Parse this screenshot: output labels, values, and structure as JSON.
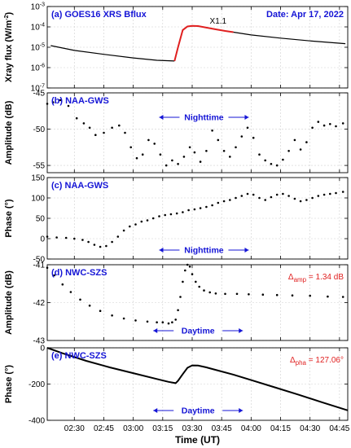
{
  "chart_data": [
    {
      "type": "line",
      "title": "(a) GOES16 XRS Bflux",
      "date_label": "Date: Apr 17, 2022",
      "annotation": "X1.1",
      "ylabel": "Xray flux (W/m",
      "ylabel_sup": "-2",
      "ylabel_end": ")",
      "yscale": "log",
      "ylim": [
        1e-07,
        0.001
      ],
      "yticks": [
        {
          "value": 1e-07,
          "base": "10",
          "exp": "-7"
        },
        {
          "value": 1e-06,
          "base": "10",
          "exp": "-6"
        },
        {
          "value": 1e-05,
          "base": "10",
          "exp": "-5"
        },
        {
          "value": 0.0001,
          "base": "10",
          "exp": "-4"
        },
        {
          "value": 0.001,
          "base": "10",
          "exp": "-3"
        }
      ],
      "series": [
        {
          "color": "#000000",
          "x": [
            2.3,
            2.5,
            2.75,
            3.0,
            3.2,
            3.35
          ],
          "y": [
            1.2e-05,
            7e-06,
            4.5e-06,
            3e-06,
            2.3e-06,
            2.1e-06
          ]
        },
        {
          "color": "#e02020",
          "x": [
            3.35,
            3.38,
            3.42,
            3.46,
            3.5,
            3.55,
            3.62,
            3.7,
            3.78,
            3.85
          ],
          "y": [
            2.1e-06,
            1e-05,
            7e-05,
            0.000105,
            0.000112,
            0.00011,
            9.2e-05,
            7.6e-05,
            6.3e-05,
            5.5e-05
          ]
        },
        {
          "color": "#000000",
          "x": [
            3.85,
            4.0,
            4.25,
            4.5,
            4.8
          ],
          "y": [
            5.5e-05,
            4e-05,
            2.8e-05,
            2.05e-05,
            1.5e-05
          ]
        }
      ]
    },
    {
      "type": "scatter",
      "title": "(b) NAA-GWS",
      "period_label": "Nighttime",
      "ylabel": "Amplitude (dB)",
      "ylim": [
        -56,
        -45
      ],
      "yticks": [
        -55,
        -50,
        -45
      ],
      "series": [
        {
          "color": "#000000",
          "x": [
            2.27,
            2.32,
            2.38,
            2.45,
            2.52,
            2.58,
            2.63,
            2.68,
            2.75,
            2.82,
            2.88,
            2.93,
            2.98,
            3.03,
            3.08,
            3.13,
            3.18,
            3.23,
            3.28,
            3.33,
            3.38,
            3.43,
            3.48,
            3.52,
            3.57,
            3.62,
            3.67,
            3.72,
            3.77,
            3.82,
            3.87,
            3.92,
            3.97,
            4.02,
            4.07,
            4.12,
            4.17,
            4.22,
            4.27,
            4.32,
            4.37,
            4.42,
            4.47,
            4.52,
            4.57,
            4.62,
            4.67,
            4.72,
            4.78
          ],
          "y": [
            -46.5,
            -46.3,
            -46.0,
            -46.8,
            -48.5,
            -49.2,
            -49.8,
            -50.8,
            -50.5,
            -49.8,
            -49.5,
            -50.5,
            -52.5,
            -54.0,
            -53.5,
            -51.5,
            -52.0,
            -53.5,
            -55.0,
            -54.3,
            -54.8,
            -53.8,
            -52.5,
            -53.2,
            -54.5,
            -53.0,
            -50.2,
            -51.5,
            -53.0,
            -53.8,
            -52.5,
            -51.0,
            -49.8,
            -51.2,
            -53.5,
            -54.3,
            -54.8,
            -55.0,
            -54.2,
            -53.0,
            -51.5,
            -52.8,
            -51.8,
            -49.8,
            -49.0,
            -49.5,
            -49.3,
            -49.6,
            -49.2
          ]
        }
      ]
    },
    {
      "type": "scatter",
      "title": "(c) NAA-GWS",
      "period_label": "Nighttime",
      "ylabel": "Phase (°)",
      "ylim": [
        -50,
        150
      ],
      "yticks": [
        -50,
        0,
        50,
        100,
        150
      ],
      "series": [
        {
          "color": "#000000",
          "x": [
            2.27,
            2.35,
            2.43,
            2.5,
            2.57,
            2.62,
            2.67,
            2.72,
            2.77,
            2.82,
            2.87,
            2.92,
            2.97,
            3.02,
            3.07,
            3.12,
            3.17,
            3.22,
            3.27,
            3.32,
            3.37,
            3.42,
            3.47,
            3.52,
            3.57,
            3.62,
            3.67,
            3.72,
            3.77,
            3.82,
            3.87,
            3.92,
            3.97,
            4.02,
            4.07,
            4.12,
            4.17,
            4.22,
            4.27,
            4.32,
            4.37,
            4.42,
            4.47,
            4.52,
            4.57,
            4.62,
            4.67,
            4.72,
            4.78
          ],
          "y": [
            5,
            3,
            2,
            0,
            -3,
            -8,
            -15,
            -20,
            -18,
            -8,
            5,
            20,
            30,
            35,
            42,
            45,
            50,
            55,
            58,
            60,
            62,
            65,
            70,
            72,
            75,
            78,
            82,
            88,
            92,
            95,
            100,
            105,
            110,
            108,
            100,
            95,
            102,
            108,
            110,
            105,
            98,
            92,
            95,
            100,
            105,
            108,
            110,
            112,
            115
          ]
        }
      ]
    },
    {
      "type": "scatter",
      "title": "(d) NWC-SZS",
      "period_label": "Daytime",
      "delta_symbol": "Δ",
      "delta_sub": "amp",
      "delta_value": " = 1.34 dB",
      "ylabel": "Amplitude (dB)",
      "ylim": [
        -43,
        -41
      ],
      "yticks": [
        -43,
        -42,
        -41
      ],
      "series": [
        {
          "color": "#000000",
          "x": [
            2.27,
            2.33,
            2.4,
            2.47,
            2.55,
            2.63,
            2.72,
            2.82,
            2.92,
            3.02,
            3.12,
            3.2,
            3.25,
            3.3,
            3.33,
            3.36,
            3.38,
            3.4,
            3.42,
            3.44,
            3.46,
            3.48,
            3.5,
            3.53,
            3.56,
            3.6,
            3.65,
            3.7,
            3.78,
            3.88,
            3.98,
            4.1,
            4.22,
            4.35,
            4.5,
            4.65,
            4.78
          ],
          "y": [
            -41.08,
            -41.28,
            -41.52,
            -41.72,
            -41.92,
            -42.08,
            -42.22,
            -42.34,
            -42.42,
            -42.47,
            -42.5,
            -42.52,
            -42.52,
            -42.55,
            -42.52,
            -42.45,
            -42.2,
            -41.85,
            -41.45,
            -41.15,
            -41.0,
            -41.05,
            -41.25,
            -41.45,
            -41.58,
            -41.68,
            -41.73,
            -41.76,
            -41.77,
            -41.77,
            -41.78,
            -41.79,
            -41.8,
            -41.81,
            -41.82,
            -41.84,
            -41.85
          ]
        }
      ]
    },
    {
      "type": "line",
      "title": "(e) NWC-SZS",
      "period_label": "Daytime",
      "delta_symbol": "Δ",
      "delta_sub": "pha",
      "delta_value": " = 127.06°",
      "ylabel": "Phase (°)",
      "xlabel": "Time (UT)",
      "ylim": [
        -400,
        0
      ],
      "yticks": [
        -400,
        -200,
        0
      ],
      "xlim": [
        2.27,
        4.82
      ],
      "xticks": [
        {
          "value": 2.5,
          "label": "02:30"
        },
        {
          "value": 2.75,
          "label": "02:45"
        },
        {
          "value": 3.0,
          "label": "03:00"
        },
        {
          "value": 3.25,
          "label": "03:15"
        },
        {
          "value": 3.5,
          "label": "03:30"
        },
        {
          "value": 3.75,
          "label": "03:45"
        },
        {
          "value": 4.0,
          "label": "04:00"
        },
        {
          "value": 4.25,
          "label": "04:15"
        },
        {
          "value": 4.5,
          "label": "04:30"
        },
        {
          "value": 4.75,
          "label": "04:45"
        }
      ],
      "series": [
        {
          "color": "#000000",
          "x": [
            2.27,
            2.4,
            2.6,
            2.8,
            3.0,
            3.2,
            3.3,
            3.36,
            3.38,
            3.42,
            3.46,
            3.5,
            3.55,
            3.62,
            3.7,
            3.85,
            4.0,
            4.2,
            4.4,
            4.6,
            4.82
          ],
          "y": [
            0,
            -30,
            -72,
            -108,
            -140,
            -172,
            -188,
            -195,
            -182,
            -145,
            -110,
            -97,
            -98,
            -108,
            -122,
            -148,
            -178,
            -218,
            -258,
            -300,
            -345
          ]
        }
      ]
    }
  ]
}
